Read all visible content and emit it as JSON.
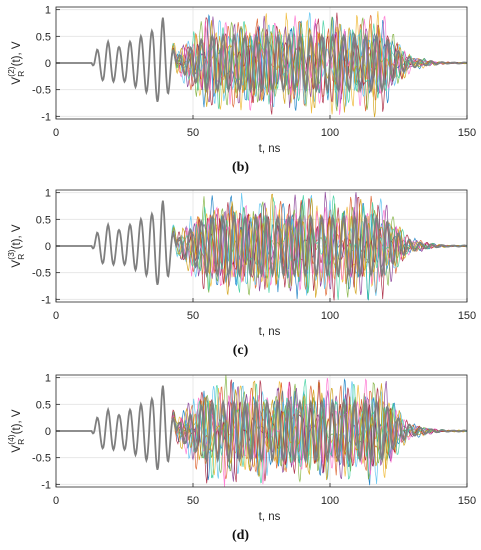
{
  "colors": {
    "envelope_line": "#7f7f7f",
    "traces": [
      "#0072bd",
      "#d95319",
      "#edb120",
      "#7e2f8e",
      "#77ac30",
      "#4dbeee",
      "#a2142f",
      "#ff66cc",
      "#33cc99",
      "#cc9900"
    ]
  },
  "chart_data": [
    {
      "type": "line",
      "panel_label": "(b)",
      "xlabel": "t, ns",
      "ylabel": "V_R^(2)(t), V",
      "ylabel_parts": {
        "main": "V",
        "sub": "R",
        "sup": "(2)",
        "tail": "(t), V"
      },
      "xlim": [
        0,
        150
      ],
      "ylim": [
        -1.05,
        1.05
      ],
      "xticks": [
        "0",
        "50",
        "100",
        "150"
      ],
      "yticks": [
        "1",
        "0.5",
        "0",
        "-0.5",
        "-1"
      ],
      "grid": true,
      "signal": {
        "pulse_peaks": [
          [
            15,
            0.25
          ],
          [
            19,
            0.4
          ],
          [
            23,
            0.3
          ],
          [
            27,
            0.4
          ],
          [
            31,
            0.5
          ],
          [
            35,
            0.6
          ],
          [
            39,
            0.85
          ]
        ],
        "dense_region": [
          45,
          120
        ],
        "dense_amplitude": 0.85,
        "decay_end": 145,
        "trace_count": 10
      }
    },
    {
      "type": "line",
      "panel_label": "(c)",
      "xlabel": "t, ns",
      "ylabel": "V_R^(3)(t), V",
      "ylabel_parts": {
        "main": "V",
        "sub": "R",
        "sup": "(3)",
        "tail": "(t), V"
      },
      "xlim": [
        0,
        150
      ],
      "ylim": [
        -1.05,
        1.05
      ],
      "xticks": [
        "0",
        "50",
        "100",
        "150"
      ],
      "yticks": [
        "1",
        "0.5",
        "0",
        "-0.5",
        "-1"
      ],
      "grid": true,
      "signal": {
        "pulse_peaks": [
          [
            15,
            0.25
          ],
          [
            19,
            0.4
          ],
          [
            23,
            0.3
          ],
          [
            27,
            0.4
          ],
          [
            31,
            0.5
          ],
          [
            35,
            0.6
          ],
          [
            39,
            0.85
          ]
        ],
        "dense_region": [
          45,
          120
        ],
        "dense_amplitude": 0.9,
        "decay_end": 145,
        "trace_count": 10
      }
    },
    {
      "type": "line",
      "panel_label": "(d)",
      "xlabel": "t, ns",
      "ylabel": "V_R^(4)(t), V",
      "ylabel_parts": {
        "main": "V",
        "sub": "R",
        "sup": "(4)",
        "tail": "(t), V"
      },
      "xlim": [
        0,
        150
      ],
      "ylim": [
        -1.05,
        1.05
      ],
      "xticks": [
        "0",
        "50",
        "100",
        "150"
      ],
      "yticks": [
        "1",
        "0.5",
        "0",
        "-0.5",
        "-1"
      ],
      "grid": true,
      "signal": {
        "pulse_peaks": [
          [
            15,
            0.25
          ],
          [
            19,
            0.4
          ],
          [
            23,
            0.3
          ],
          [
            27,
            0.4
          ],
          [
            31,
            0.5
          ],
          [
            35,
            0.6
          ],
          [
            39,
            0.85
          ]
        ],
        "dense_region": [
          45,
          120
        ],
        "dense_amplitude": 0.9,
        "decay_end": 145,
        "trace_count": 10
      }
    }
  ]
}
